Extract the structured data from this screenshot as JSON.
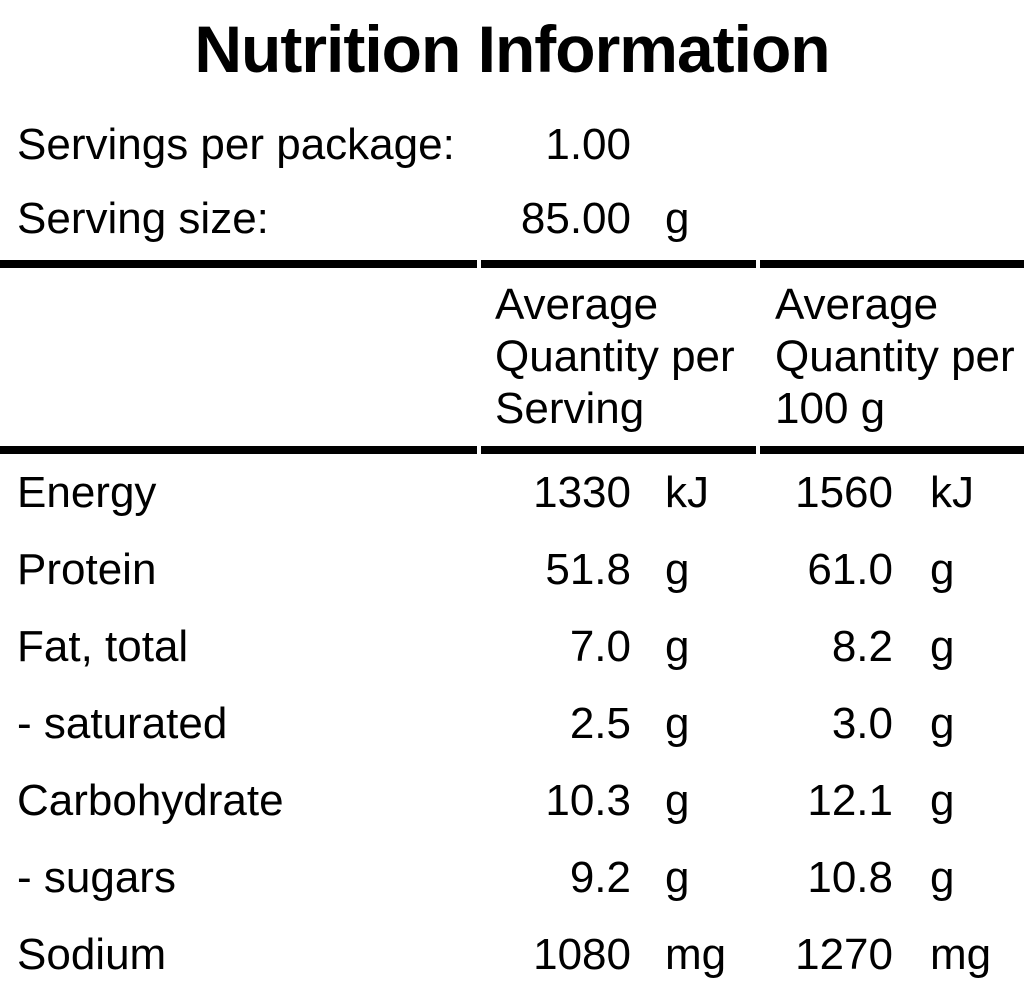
{
  "title": "Nutrition Information",
  "serving_info": {
    "rows": [
      {
        "label": "Servings per package:",
        "value": "1.00",
        "unit": ""
      },
      {
        "label": "Serving size:",
        "value": "85.00",
        "unit": "g"
      }
    ]
  },
  "table": {
    "column_headers": {
      "per_serving": "Average Quantity per Serving",
      "per_100g": "Average Quantity per 100 g"
    },
    "rows": [
      {
        "label": "Energy",
        "per_serving": "1330",
        "per_serving_unit": "kJ",
        "per_100g": "1560",
        "per_100g_unit": "kJ"
      },
      {
        "label": "Protein",
        "per_serving": "51.8",
        "per_serving_unit": "g",
        "per_100g": "61.0",
        "per_100g_unit": "g"
      },
      {
        "label": "Fat, total",
        "per_serving": "7.0",
        "per_serving_unit": "g",
        "per_100g": "8.2",
        "per_100g_unit": "g"
      },
      {
        "label": "- saturated",
        "per_serving": "2.5",
        "per_serving_unit": "g",
        "per_100g": "3.0",
        "per_100g_unit": "g"
      },
      {
        "label": "Carbohydrate",
        "per_serving": "10.3",
        "per_serving_unit": "g",
        "per_100g": "12.1",
        "per_100g_unit": "g"
      },
      {
        "label": "- sugars",
        "per_serving": "9.2",
        "per_serving_unit": "g",
        "per_100g": "10.8",
        "per_100g_unit": "g"
      },
      {
        "label": "Sodium",
        "per_serving": "1080",
        "per_serving_unit": "mg",
        "per_100g": "1270",
        "per_100g_unit": "mg"
      }
    ]
  },
  "colors": {
    "text": "#000000",
    "background": "#ffffff",
    "rule": "#000000"
  }
}
